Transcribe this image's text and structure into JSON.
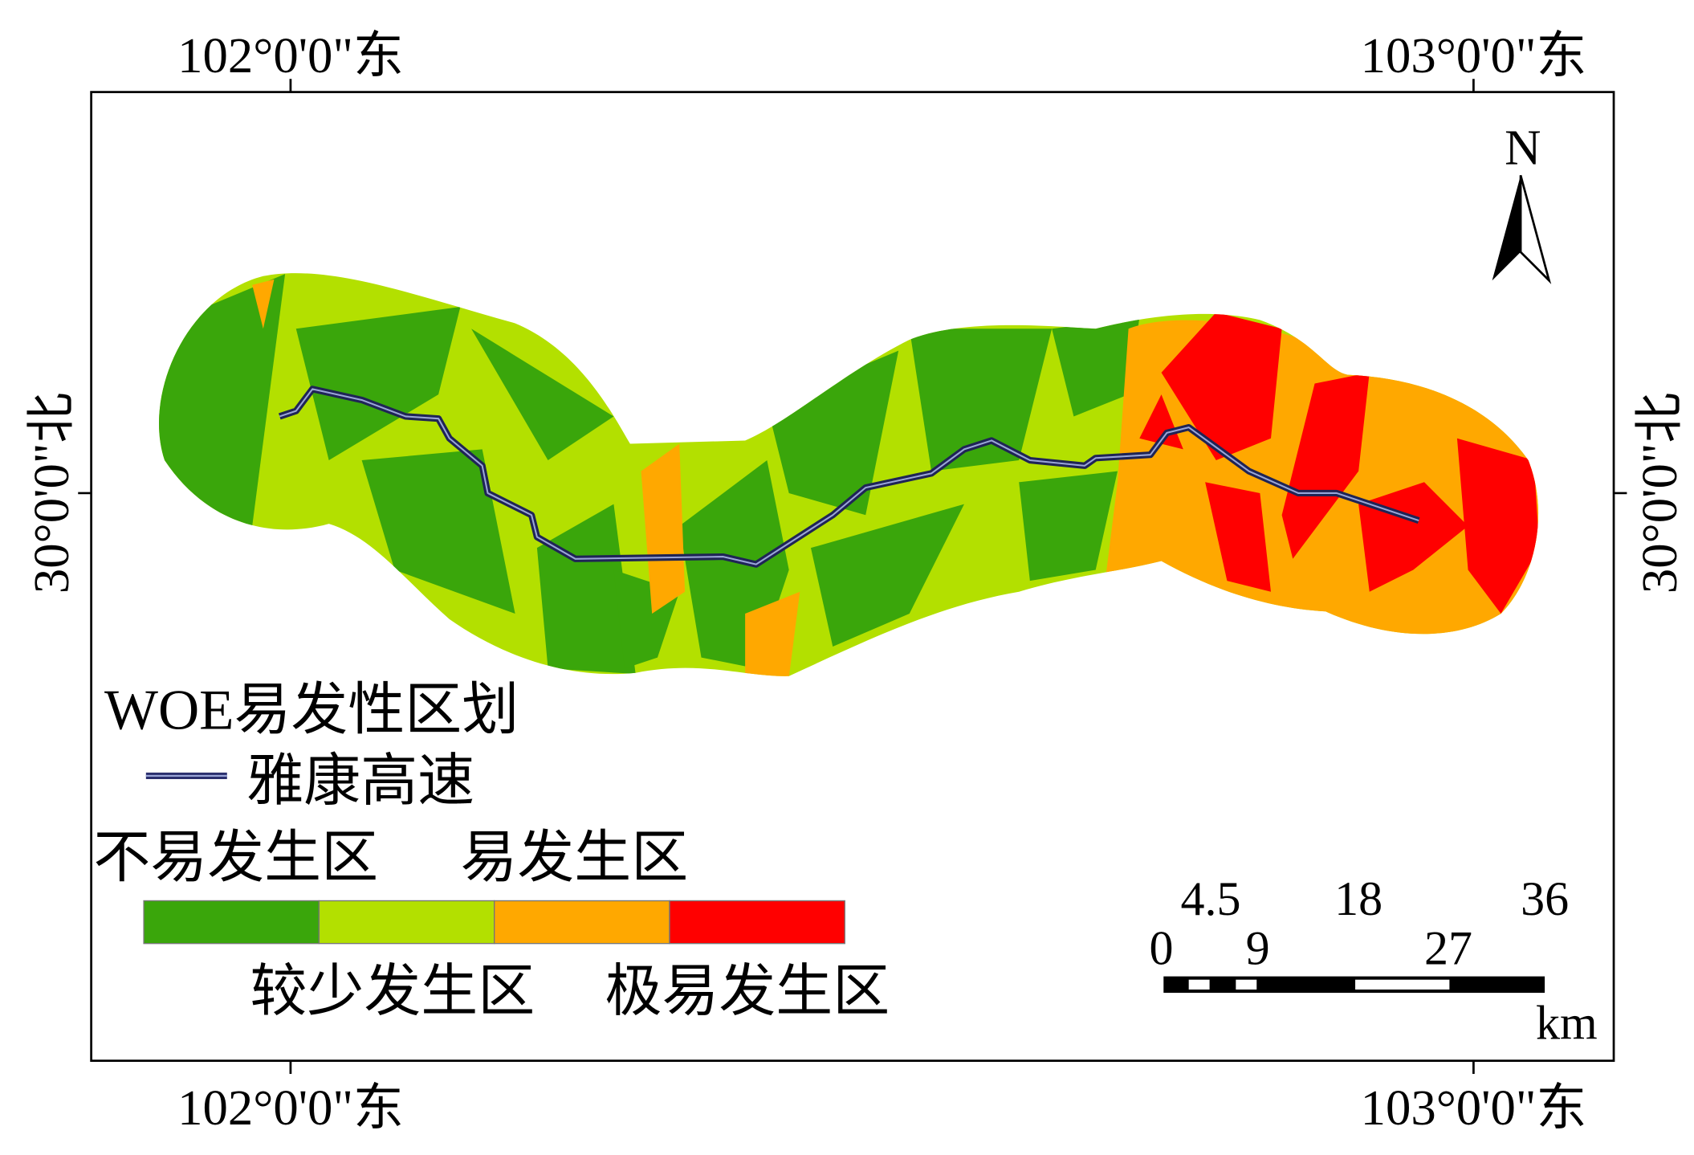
{
  "graticule": {
    "top_left": "102°0'0\"东",
    "top_right": "103°0'0\"东",
    "bottom_left": "102°0'0\"东",
    "bottom_right": "103°0'0\"东",
    "left": "30°0'0\"北",
    "right": "30°0'0\"北"
  },
  "north_arrow": {
    "label": "N"
  },
  "legend": {
    "title": "WOE易发性区划",
    "road_label": "雅康高速",
    "road_color": "#2b2f6e",
    "classes": [
      {
        "label": "不易发生区",
        "color": "#3aa60b"
      },
      {
        "label": "较少发生区",
        "color": "#b3e000"
      },
      {
        "label": "易发生区",
        "color": "#ffa800"
      },
      {
        "label": "极易发生区",
        "color": "#ff0000"
      }
    ]
  },
  "scale_bar": {
    "unit": "km",
    "upper_labels": [
      "4.5",
      "18",
      "36"
    ],
    "lower_labels": [
      "0",
      "9",
      "27"
    ]
  }
}
